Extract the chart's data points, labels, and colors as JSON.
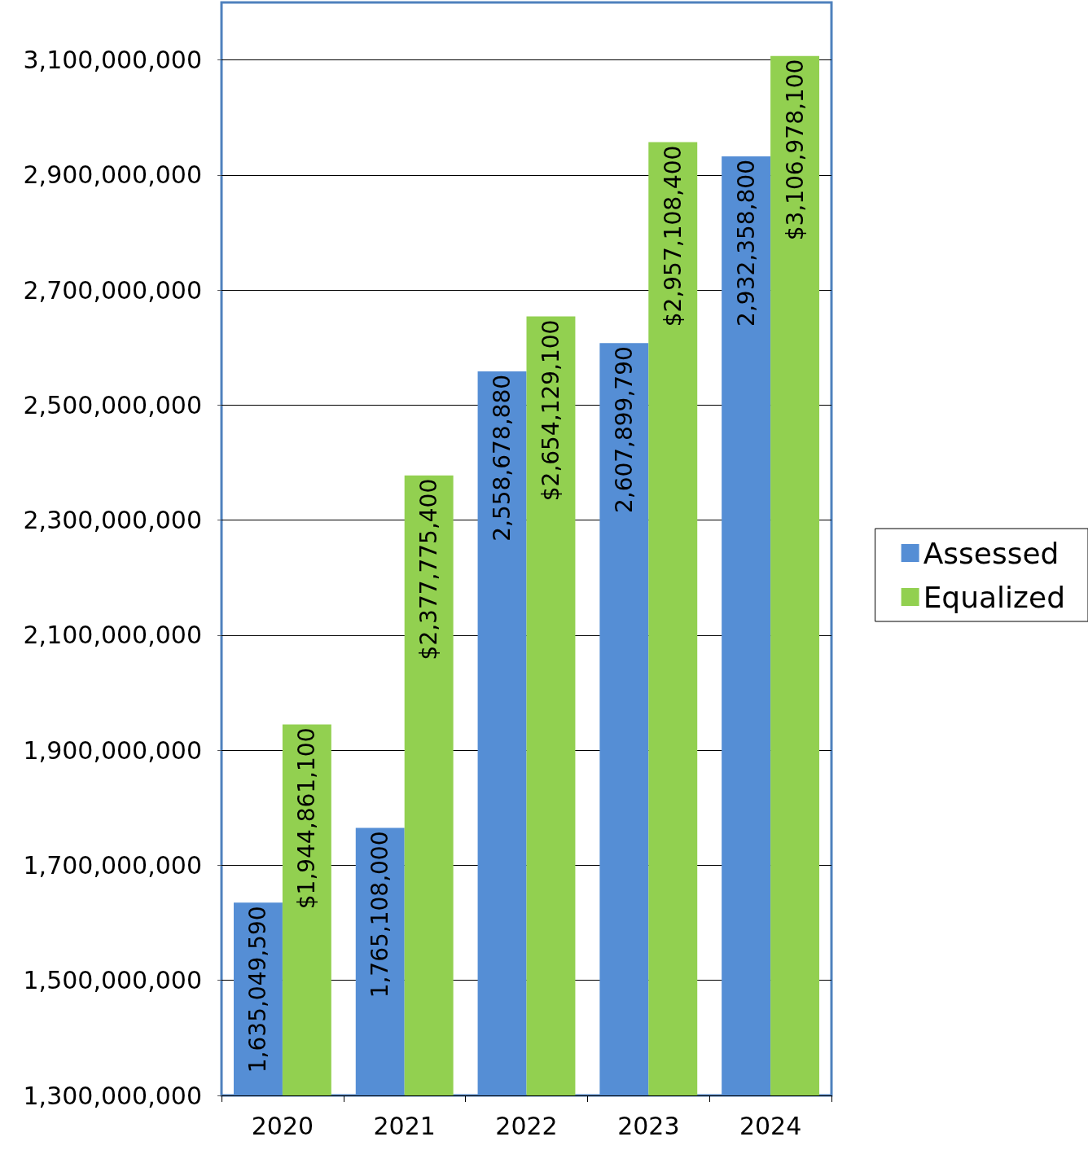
{
  "chart_data": {
    "type": "bar",
    "categories": [
      "2020",
      "2021",
      "2022",
      "2023",
      "2024"
    ],
    "series": [
      {
        "name": "Assessed",
        "color": "#558ed5",
        "values": [
          1635049590,
          1765108000,
          2558678880,
          2607899790,
          2932358800
        ],
        "value_labels": [
          "1,635,049,590",
          "1,765,108,000",
          "2,558,678,880",
          "2,607,899,790",
          "2,932,358,800"
        ]
      },
      {
        "name": "Equalized",
        "color": "#92d050",
        "values": [
          1944861100,
          2377775400,
          2654129100,
          2957108400,
          3106978100
        ],
        "value_labels": [
          "$1,944,861,100",
          "$2,377,775,400",
          "$2,654,129,100",
          "$2,957,108,400",
          "$3,106,978,100"
        ]
      }
    ],
    "ylim": [
      1300000000,
      3200000000
    ],
    "yticks": [
      {
        "value": 1300000000,
        "label": "1,300,000,000"
      },
      {
        "value": 1500000000,
        "label": "1,500,000,000"
      },
      {
        "value": 1700000000,
        "label": "1,700,000,000"
      },
      {
        "value": 1900000000,
        "label": "1,900,000,000"
      },
      {
        "value": 2100000000,
        "label": "2,100,000,000"
      },
      {
        "value": 2300000000,
        "label": "2,300,000,000"
      },
      {
        "value": 2500000000,
        "label": "2,500,000,000"
      },
      {
        "value": 2700000000,
        "label": "2,700,000,000"
      },
      {
        "value": 2900000000,
        "label": "2,900,000,000"
      },
      {
        "value": 3100000000,
        "label": "3,100,000,000"
      }
    ],
    "grid": "y",
    "legend": "right"
  }
}
